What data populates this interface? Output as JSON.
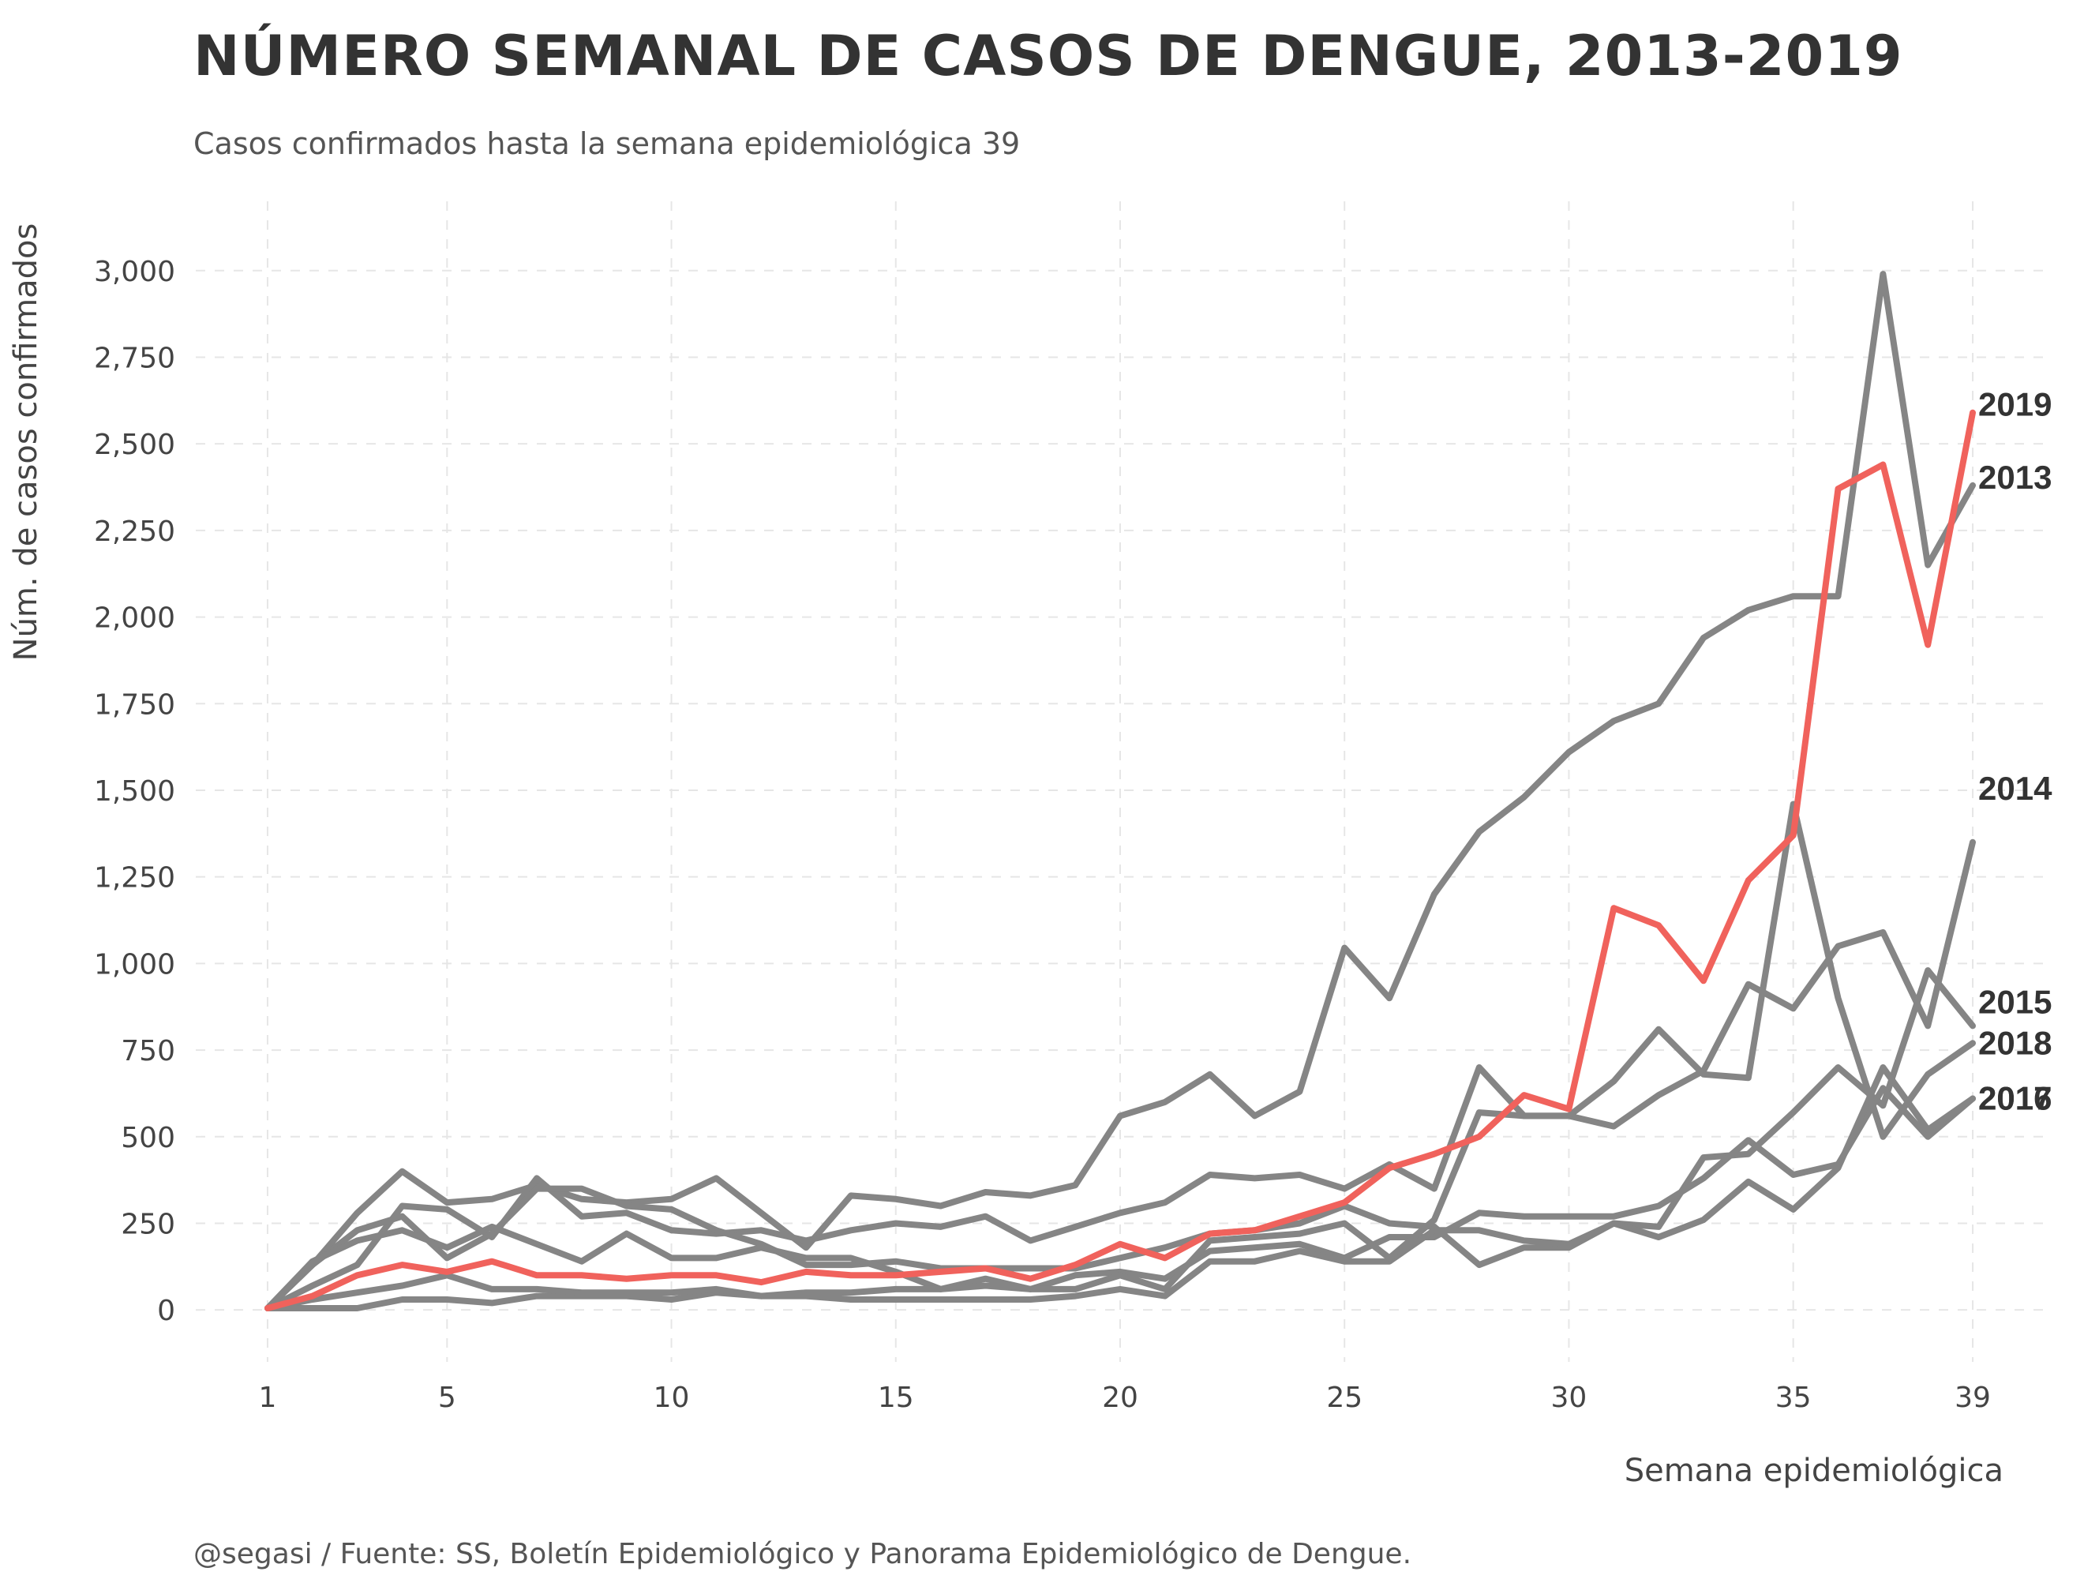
{
  "chart_data": {
    "type": "line",
    "title": "NÚMERO SEMANAL DE CASOS DE DENGUE, 2013-2019",
    "subtitle": "Casos confirmados hasta la semana epidemiológica 39",
    "caption": "@segasi / Fuente: SS, Boletín Epidemiológico y Panorama Epidemiológico de Dengue.",
    "xlabel": "Semana epidemiológica",
    "ylabel": "Núm. de casos confirmados",
    "xlim": [
      -0.6,
      40.6
    ],
    "ylim": [
      -150,
      3200
    ],
    "x_ticks": [
      1,
      5,
      10,
      15,
      20,
      25,
      30,
      35,
      39
    ],
    "x_tick_labels": [
      "1",
      "5",
      "10",
      "15",
      "20",
      "25",
      "30",
      "35",
      "39"
    ],
    "y_ticks": [
      0,
      250,
      500,
      750,
      1000,
      1250,
      1500,
      1750,
      2000,
      2250,
      2500,
      2750,
      3000
    ],
    "y_tick_labels": [
      "0",
      "250",
      "500",
      "750",
      "1,000",
      "1,250",
      "1,500",
      "1,750",
      "2,000",
      "2,250",
      "2,500",
      "2,750",
      "3,000"
    ],
    "grid": true,
    "legend": "none",
    "colors": {
      "highlight": "#f0625c",
      "other": "#858585"
    },
    "x": [
      1,
      2,
      3,
      4,
      5,
      6,
      7,
      8,
      9,
      10,
      11,
      12,
      13,
      14,
      15,
      16,
      17,
      18,
      19,
      20,
      21,
      22,
      23,
      24,
      25,
      26,
      27,
      28,
      29,
      30,
      31,
      32,
      33,
      34,
      35,
      36,
      37,
      38,
      39
    ],
    "series": [
      {
        "name": "2013",
        "label_offset": 0,
        "highlight": false,
        "values": [
          5,
          130,
          280,
          400,
          310,
          320,
          360,
          320,
          310,
          320,
          380,
          280,
          180,
          330,
          320,
          300,
          340,
          330,
          360,
          560,
          600,
          680,
          560,
          630,
          1045,
          900,
          1200,
          1380,
          1480,
          1610,
          1700,
          1750,
          1940,
          2020,
          2060,
          2060,
          2990,
          2150,
          2380
        ]
      },
      {
        "name": "2014",
        "label_offset": 0,
        "highlight": false,
        "values": [
          5,
          70,
          130,
          300,
          290,
          210,
          380,
          270,
          280,
          230,
          220,
          230,
          200,
          230,
          250,
          240,
          270,
          200,
          240,
          280,
          310,
          390,
          380,
          390,
          350,
          420,
          350,
          700,
          560,
          560,
          530,
          620,
          690,
          940,
          870,
          1050,
          1090,
          820,
          1350
        ]
      },
      {
        "name": "2015",
        "label_offset": 0,
        "highlight": false,
        "values": [
          5,
          130,
          230,
          270,
          150,
          220,
          350,
          350,
          300,
          290,
          230,
          190,
          130,
          130,
          140,
          120,
          120,
          120,
          120,
          150,
          180,
          220,
          230,
          250,
          300,
          250,
          240,
          130,
          180,
          180,
          250,
          240,
          440,
          450,
          570,
          700,
          590,
          980,
          820
        ]
      },
      {
        "name": "2016",
        "label_offset": 0,
        "highlight": false,
        "values": [
          5,
          140,
          200,
          230,
          180,
          240,
          190,
          140,
          220,
          150,
          150,
          180,
          150,
          150,
          110,
          60,
          90,
          60,
          100,
          110,
          90,
          170,
          180,
          190,
          150,
          210,
          210,
          280,
          270,
          270,
          270,
          300,
          380,
          490,
          390,
          420,
          640,
          500,
          610
        ]
      },
      {
        "name": "2017",
        "label_offset": 0,
        "highlight": false,
        "values": [
          5,
          5,
          5,
          30,
          30,
          20,
          40,
          40,
          40,
          30,
          50,
          40,
          40,
          30,
          30,
          30,
          30,
          30,
          40,
          60,
          40,
          140,
          140,
          170,
          140,
          140,
          230,
          230,
          200,
          190,
          250,
          210,
          260,
          370,
          290,
          410,
          700,
          520,
          610
        ]
      },
      {
        "name": "2018",
        "label_offset": 0,
        "highlight": false,
        "values": [
          5,
          30,
          50,
          70,
          100,
          60,
          60,
          50,
          50,
          50,
          60,
          40,
          50,
          50,
          60,
          60,
          70,
          60,
          60,
          100,
          60,
          200,
          210,
          220,
          250,
          150,
          260,
          570,
          560,
          560,
          660,
          810,
          680,
          670,
          1460,
          900,
          500,
          680,
          770
        ]
      },
      {
        "name": "2019",
        "label_offset": 0,
        "highlight": true,
        "values": [
          5,
          40,
          100,
          130,
          110,
          140,
          100,
          100,
          90,
          100,
          100,
          80,
          110,
          100,
          100,
          110,
          120,
          90,
          130,
          190,
          150,
          220,
          230,
          270,
          310,
          410,
          450,
          500,
          620,
          580,
          1160,
          1110,
          950,
          1240,
          1370,
          2370,
          2440,
          1920,
          2590
        ]
      }
    ]
  }
}
